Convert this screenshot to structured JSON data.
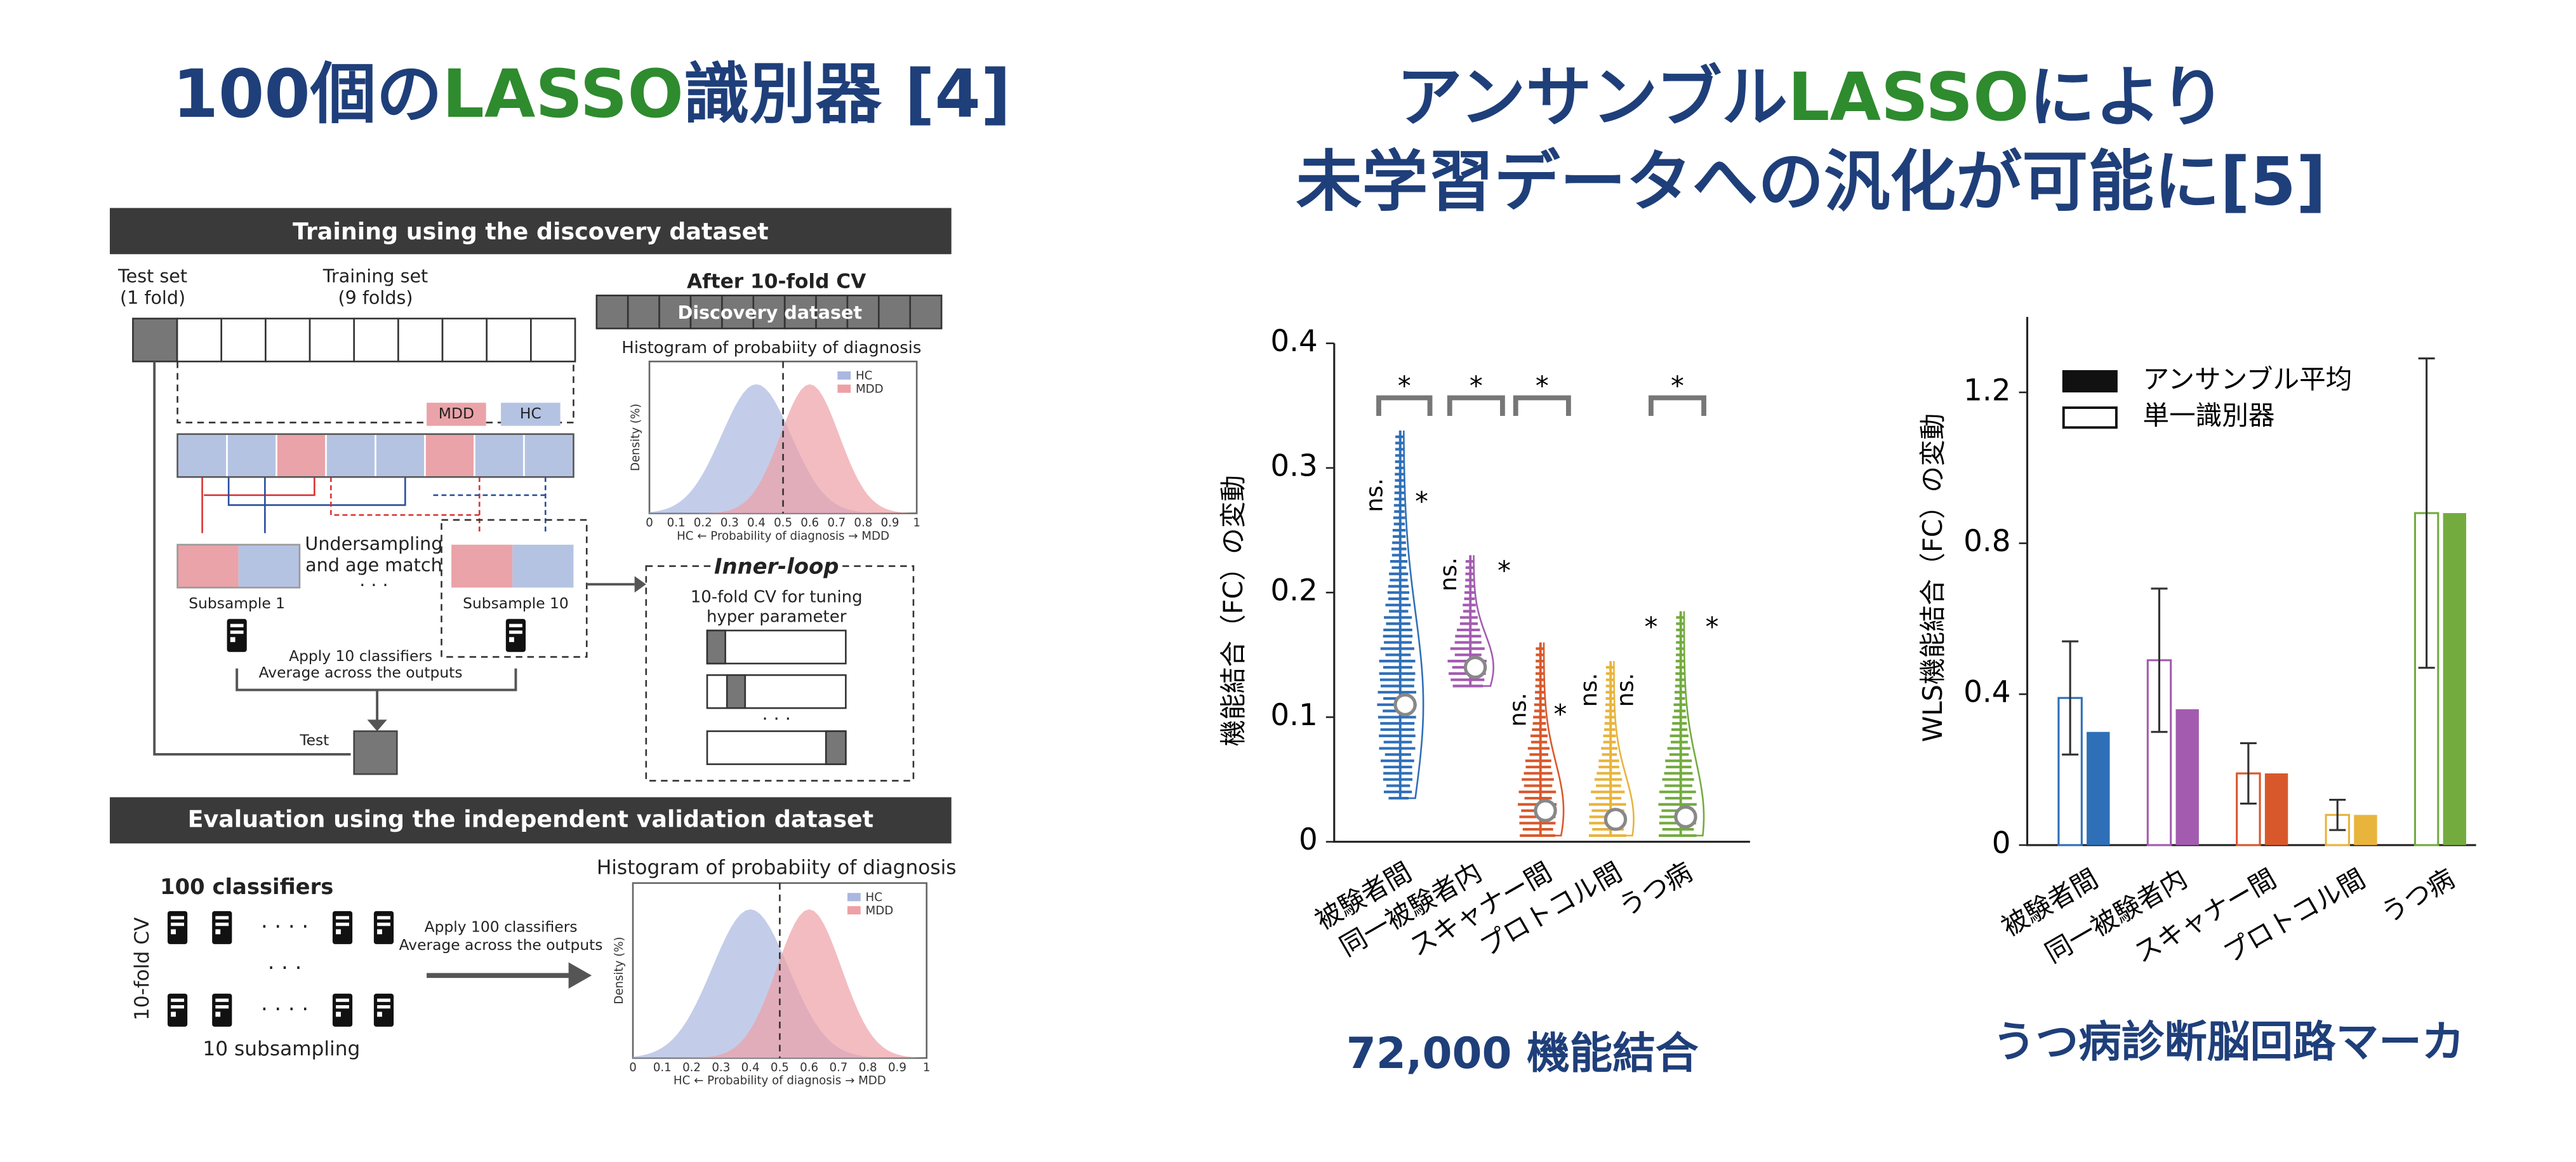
{
  "left_title": {
    "a": "100個の",
    "b": "LASSO",
    "c": "識別器 [4]"
  },
  "right_title": {
    "a": "アンサンブル",
    "b": "LASSO",
    "c": "により",
    "line2": "未学習データへの汎化が可能に[5]"
  },
  "diagram": {
    "header1": "Training using the discovery dataset",
    "test_set": "Test set",
    "test_fold": "(1 fold)",
    "training_set": "Training set",
    "training_folds": "(9 folds)",
    "after_cv": "After 10-fold CV",
    "discovery": "Discovery dataset",
    "hist_title": "Histogram of probabiity of diagnosis",
    "hc": "HC",
    "mdd": "MDD",
    "density": "Density (%)",
    "hist_axis": "HC ←   Probability of diagnosis   → MDD",
    "hist_ticks": [
      0,
      0.1,
      0.2,
      0.3,
      0.4,
      0.5,
      0.6,
      0.7,
      0.8,
      0.9,
      1
    ],
    "undersampling": "Undersampling",
    "age_match": "and age match",
    "dots": "· · ·",
    "subsample1": "Subsample 1",
    "subsample10": "Subsample 10",
    "apply10": "Apply 10 classifiers",
    "average": "Average across the outputs",
    "test": "Test",
    "inner_loop": "Inner-loop",
    "inner1": "10-fold CV for tuning",
    "inner2": "hyper parameter",
    "header2": "Evaluation using the independent validation dataset",
    "classifiers": "100 classifiers",
    "tenfold": "10-fold CV",
    "subsampling": "10 subsampling",
    "apply100": "Apply 100 classifiers",
    "dots4": "· · · ·"
  },
  "chart_data": [
    {
      "type": "violin",
      "ylabel": "機能結合（FC）の変動",
      "categories": [
        "被験者間",
        "同一被験者内",
        "スキャナー間",
        "プロトコル間",
        "うつ病"
      ],
      "values": [
        0.11,
        0.14,
        0.025,
        0.018,
        0.02
      ],
      "ranges": [
        [
          0.035,
          0.33
        ],
        [
          0.125,
          0.23
        ],
        [
          0.005,
          0.16
        ],
        [
          0.005,
          0.145
        ],
        [
          0.005,
          0.185
        ]
      ],
      "colors": [
        "#2f6fb8",
        "#a35bb0",
        "#d9582b",
        "#e8b43c",
        "#73ab3f"
      ],
      "ylim": [
        0,
        0.4
      ],
      "yticks": [
        0,
        0.1,
        0.2,
        0.3,
        0.4
      ],
      "annotations": {
        "star": "*",
        "ns": "ns."
      }
    },
    {
      "type": "bar",
      "ylabel": "WLS機能結合（FC）の変動",
      "categories": [
        "被験者間",
        "同一被験者内",
        "スキャナー間",
        "プロトコル間",
        "うつ病"
      ],
      "colors": [
        "#2f6fb8",
        "#a35bb0",
        "#d9582b",
        "#e8b43c",
        "#73ab3f"
      ],
      "series": [
        {
          "name": "アンサンブル平均",
          "color": "#111111",
          "values": [
            0.3,
            0.36,
            0.19,
            0.08,
            0.88
          ]
        },
        {
          "name": "単一識別器",
          "color": "#ffffff",
          "values": [
            0.39,
            0.49,
            0.19,
            0.08,
            0.88
          ],
          "errors": [
            0.15,
            0.19,
            0.08,
            0.04,
            0.41
          ]
        }
      ],
      "ylim": [
        0,
        1.4
      ],
      "yticks": [
        0,
        0.4,
        0.8,
        1.2
      ]
    }
  ],
  "captions": {
    "left": "72,000 機能結合",
    "right": "うつ病診断脳回路マーカ"
  }
}
